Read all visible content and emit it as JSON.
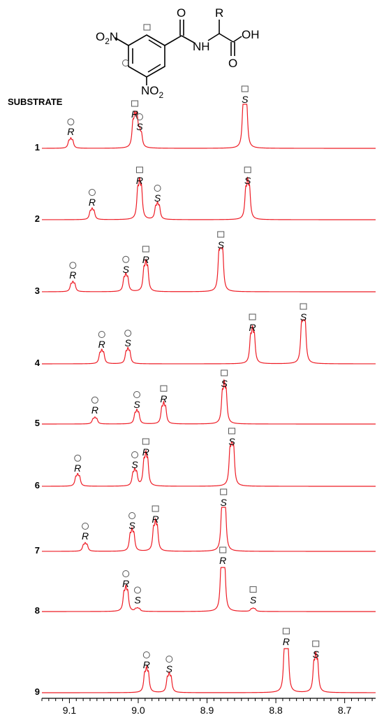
{
  "structure": {
    "o2n_left": "O",
    "o2n_left_sub": "2",
    "o2n_left_n": "N",
    "o2n_bottom_n": "NO",
    "o2n_bottom_sub": "2",
    "carbonyl_o": "O",
    "nh": "NH",
    "r_group": "R",
    "acid_o": "O",
    "acid_oh": "OH",
    "markers": [
      "square",
      "circle"
    ]
  },
  "chart_data": {
    "type": "line",
    "title": "",
    "section_label": "SUBSTRATE",
    "xlabel": "",
    "ylabel": "",
    "xlim": [
      9.14,
      8.655
    ],
    "x_ticks": [
      9.1,
      9.0,
      8.9,
      8.8,
      8.7
    ],
    "x_tick_labels": [
      "9.1",
      "9.0",
      "8.9",
      "8.8",
      "8.7"
    ],
    "line_color": "#ee1c25",
    "series": [
      {
        "name": "1",
        "peaks": [
          {
            "ppm": 9.098,
            "height": 0.18,
            "width": 0.0016,
            "marker": "circle",
            "label": "R"
          },
          {
            "ppm": 9.005,
            "height": 0.6,
            "width": 0.0016,
            "marker": "square",
            "label": "R"
          },
          {
            "ppm": 8.998,
            "height": 0.3,
            "width": 0.0016,
            "marker": "circle",
            "label": "S"
          },
          {
            "ppm": 8.845,
            "height": 0.95,
            "width": 0.0016,
            "marker": "square",
            "label": "S"
          }
        ]
      },
      {
        "name": "2",
        "peaks": [
          {
            "ppm": 9.067,
            "height": 0.2,
            "width": 0.0016,
            "marker": "circle",
            "label": "R"
          },
          {
            "ppm": 8.998,
            "height": 0.72,
            "width": 0.0016,
            "marker": "square",
            "label": "R"
          },
          {
            "ppm": 8.972,
            "height": 0.3,
            "width": 0.0016,
            "marker": "circle",
            "label": "S"
          },
          {
            "ppm": 8.841,
            "height": 0.72,
            "width": 0.0016,
            "marker": "square",
            "label": "S"
          }
        ]
      },
      {
        "name": "3",
        "peaks": [
          {
            "ppm": 9.095,
            "height": 0.18,
            "width": 0.0016,
            "marker": "circle",
            "label": "R"
          },
          {
            "ppm": 9.018,
            "height": 0.32,
            "width": 0.0016,
            "marker": "circle",
            "label": "S"
          },
          {
            "ppm": 8.989,
            "height": 0.55,
            "width": 0.0016,
            "marker": "square",
            "label": "R"
          },
          {
            "ppm": 8.88,
            "height": 0.9,
            "width": 0.0016,
            "marker": "square",
            "label": "S"
          }
        ]
      },
      {
        "name": "4",
        "peaks": [
          {
            "ppm": 9.053,
            "height": 0.25,
            "width": 0.0016,
            "marker": "circle",
            "label": "R"
          },
          {
            "ppm": 9.015,
            "height": 0.28,
            "width": 0.0016,
            "marker": "circle",
            "label": "S"
          },
          {
            "ppm": 8.834,
            "height": 0.65,
            "width": 0.0016,
            "marker": "square",
            "label": "R"
          },
          {
            "ppm": 8.76,
            "height": 0.9,
            "width": 0.0016,
            "marker": "square",
            "label": "S"
          }
        ]
      },
      {
        "name": "5",
        "peaks": [
          {
            "ppm": 9.063,
            "height": 0.12,
            "width": 0.0016,
            "marker": "circle",
            "label": "R"
          },
          {
            "ppm": 9.002,
            "height": 0.25,
            "width": 0.0016,
            "marker": "circle",
            "label": "S"
          },
          {
            "ppm": 8.963,
            "height": 0.38,
            "width": 0.0016,
            "marker": "square",
            "label": "R"
          },
          {
            "ppm": 8.875,
            "height": 0.75,
            "width": 0.0016,
            "marker": "square",
            "label": "S"
          }
        ]
      },
      {
        "name": "6",
        "peaks": [
          {
            "ppm": 9.088,
            "height": 0.22,
            "width": 0.0016,
            "marker": "circle",
            "label": "R"
          },
          {
            "ppm": 9.005,
            "height": 0.3,
            "width": 0.0016,
            "marker": "circle",
            "label": "S"
          },
          {
            "ppm": 8.989,
            "height": 0.6,
            "width": 0.0016,
            "marker": "square",
            "label": "R"
          },
          {
            "ppm": 8.864,
            "height": 0.85,
            "width": 0.0016,
            "marker": "square",
            "label": "S"
          }
        ]
      },
      {
        "name": "7",
        "peaks": [
          {
            "ppm": 9.077,
            "height": 0.15,
            "width": 0.0016,
            "marker": "circle",
            "label": "R"
          },
          {
            "ppm": 9.009,
            "height": 0.4,
            "width": 0.0016,
            "marker": "circle",
            "label": "S"
          },
          {
            "ppm": 8.975,
            "height": 0.55,
            "width": 0.0016,
            "marker": "square",
            "label": "R"
          },
          {
            "ppm": 8.876,
            "height": 0.95,
            "width": 0.0016,
            "marker": "square",
            "label": "S"
          }
        ]
      },
      {
        "name": "8",
        "peaks": [
          {
            "ppm": 9.018,
            "height": 0.45,
            "width": 0.0016,
            "marker": "circle",
            "label": "R"
          },
          {
            "ppm": 9.001,
            "height": 0.06,
            "width": 0.0016,
            "marker": "circle",
            "label": "S"
          },
          {
            "ppm": 8.877,
            "height": 1.0,
            "width": 0.0016,
            "marker": "square",
            "label": "R"
          },
          {
            "ppm": 8.833,
            "height": 0.06,
            "width": 0.0016,
            "marker": "square",
            "label": "S"
          }
        ]
      },
      {
        "name": "9",
        "peaks": [
          {
            "ppm": 8.988,
            "height": 0.45,
            "width": 0.0016,
            "marker": "circle",
            "label": "R"
          },
          {
            "ppm": 8.955,
            "height": 0.35,
            "width": 0.0016,
            "marker": "circle",
            "label": "S"
          },
          {
            "ppm": 8.785,
            "height": 1.0,
            "width": 0.0016,
            "marker": "square",
            "label": "R"
          },
          {
            "ppm": 8.742,
            "height": 0.7,
            "width": 0.0016,
            "marker": "square",
            "label": "S"
          }
        ]
      }
    ]
  }
}
